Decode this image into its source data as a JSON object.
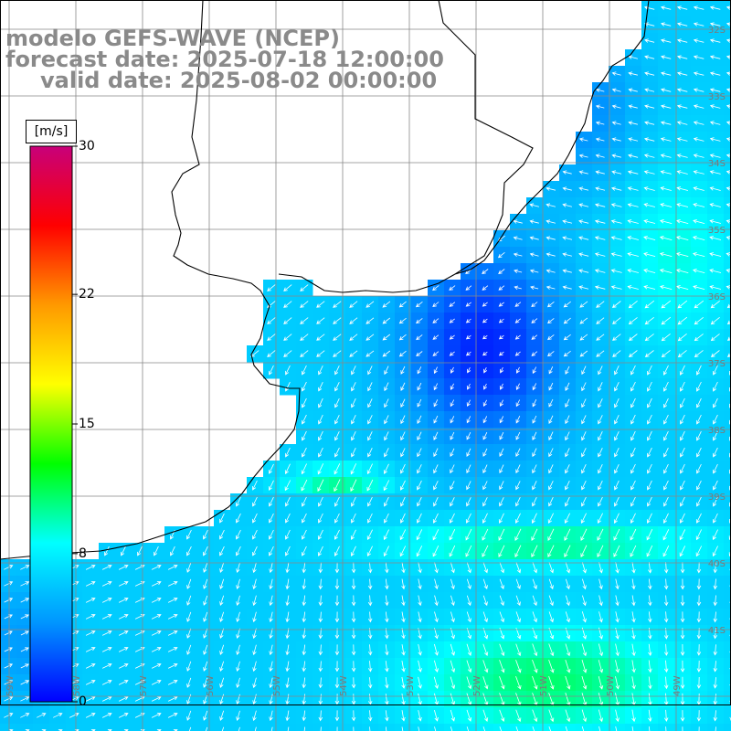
{
  "header": {
    "line1": "modelo GEFS-WAVE (NCEP)",
    "line2": "forecast date: 2025-07-18 12:00:00",
    "line3": "valid date: 2025-08-02 00:00:00"
  },
  "colorbar": {
    "unit": "[m/s]",
    "ticks": [
      {
        "label": "30",
        "value": 30
      },
      {
        "label": "22",
        "value": 22
      },
      {
        "label": "15",
        "value": 15
      },
      {
        "label": "8",
        "value": 8
      },
      {
        "label": "0",
        "value": 0
      }
    ],
    "colors": [
      "#0000ff",
      "#0096ff",
      "#00ffff",
      "#00ff00",
      "#ffff00",
      "#ff9900",
      "#ff0000",
      "#c8007a"
    ]
  },
  "map": {
    "lat_labels": [
      "32S",
      "33S",
      "34S",
      "35S",
      "36S",
      "37S",
      "38S",
      "39S",
      "40S",
      "41S"
    ],
    "lon_labels": [
      "59W",
      "58W",
      "57W",
      "56W",
      "55W",
      "54W",
      "53W",
      "52W",
      "51W",
      "50W",
      "49W"
    ],
    "land_color": "#ffffff",
    "grid_color": "#888888"
  }
}
